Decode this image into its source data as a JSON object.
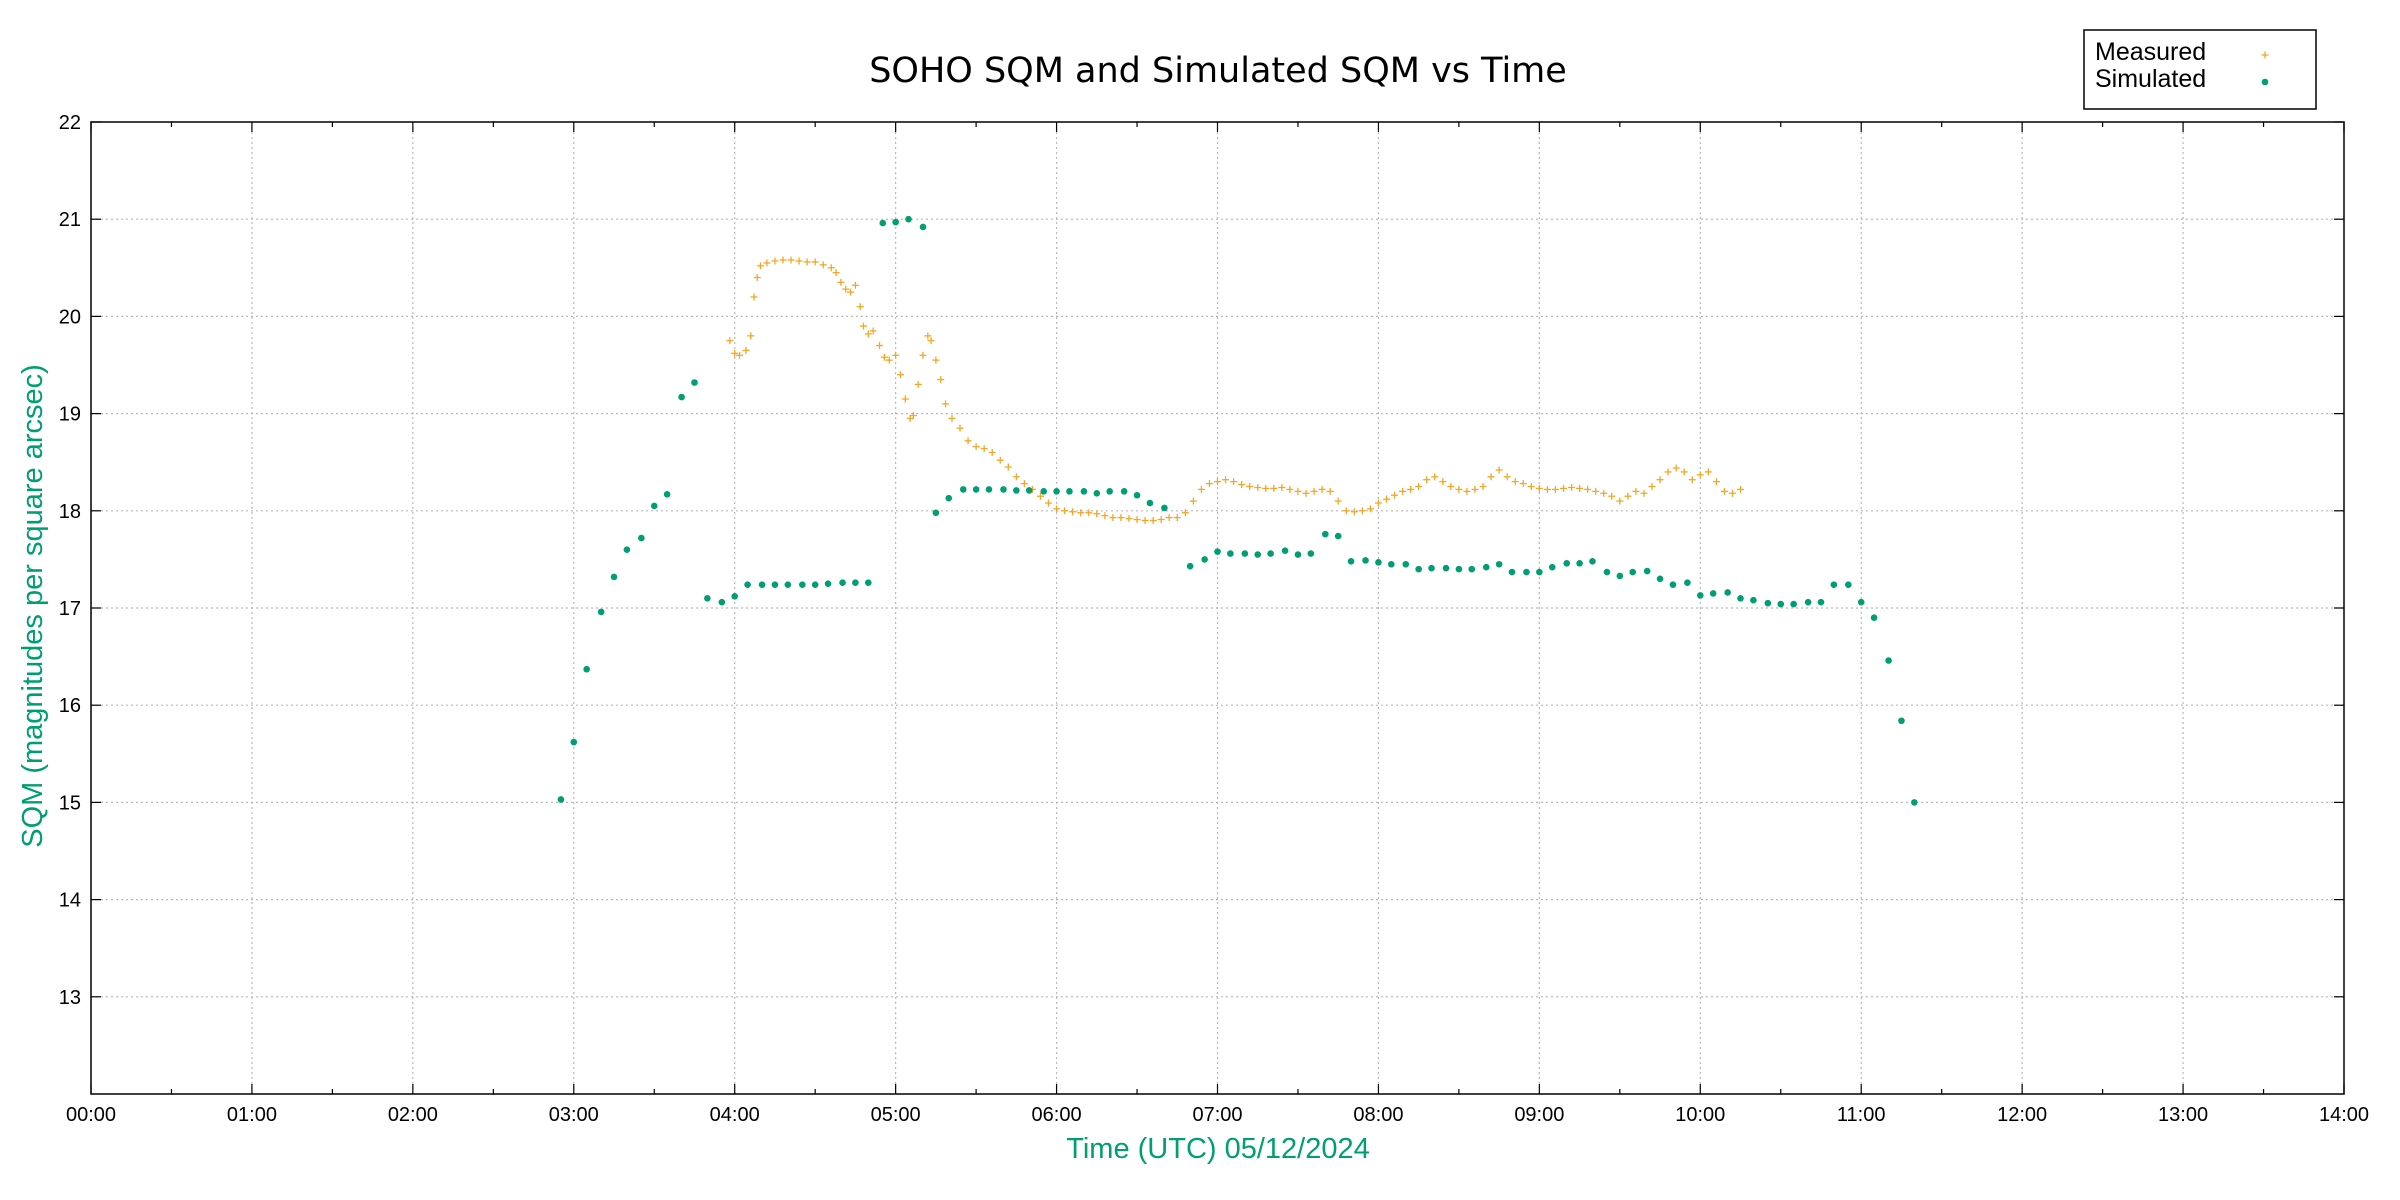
{
  "colors": {
    "measured": "#f5a623",
    "simulated": "#009e73",
    "grid": "#b8b8b8",
    "axis": "#000000",
    "label_accent": "#009e73"
  },
  "legend": {
    "measured_label": "Measured",
    "simulated_label": "Simulated",
    "placement": "top-right"
  },
  "chart_data": {
    "type": "scatter",
    "title": "SOHO SQM and Simulated SQM vs Time",
    "xlabel": "Time (UTC)   05/12/2024",
    "ylabel": "SQM (magnitudes per square arcsec)",
    "xlim": [
      0,
      14
    ],
    "ylim": [
      12,
      22
    ],
    "x_unit": "hours UTC",
    "grid": true,
    "x_ticks": [
      "00:00",
      "01:00",
      "02:00",
      "03:00",
      "04:00",
      "05:00",
      "06:00",
      "07:00",
      "08:00",
      "09:00",
      "10:00",
      "11:00",
      "12:00",
      "13:00",
      "14:00"
    ],
    "y_ticks": [
      "13",
      "14",
      "15",
      "16",
      "17",
      "18",
      "19",
      "20",
      "21",
      "22"
    ],
    "series": [
      {
        "name": "Measured",
        "marker": "plus",
        "points": [
          [
            3.97,
            19.75
          ],
          [
            4.0,
            19.62
          ],
          [
            4.03,
            19.6
          ],
          [
            4.07,
            19.65
          ],
          [
            4.1,
            19.8
          ],
          [
            4.12,
            20.2
          ],
          [
            4.14,
            20.4
          ],
          [
            4.16,
            20.52
          ],
          [
            4.2,
            20.55
          ],
          [
            4.25,
            20.57
          ],
          [
            4.3,
            20.58
          ],
          [
            4.35,
            20.58
          ],
          [
            4.4,
            20.57
          ],
          [
            4.45,
            20.56
          ],
          [
            4.5,
            20.56
          ],
          [
            4.55,
            20.53
          ],
          [
            4.6,
            20.5
          ],
          [
            4.63,
            20.45
          ],
          [
            4.66,
            20.35
          ],
          [
            4.69,
            20.28
          ],
          [
            4.72,
            20.25
          ],
          [
            4.75,
            20.32
          ],
          [
            4.78,
            20.1
          ],
          [
            4.8,
            19.9
          ],
          [
            4.83,
            19.82
          ],
          [
            4.86,
            19.85
          ],
          [
            4.9,
            19.7
          ],
          [
            4.93,
            19.58
          ],
          [
            4.96,
            19.55
          ],
          [
            5.0,
            19.6
          ],
          [
            5.03,
            19.4
          ],
          [
            5.06,
            19.15
          ],
          [
            5.09,
            18.95
          ],
          [
            5.11,
            18.98
          ],
          [
            5.14,
            19.3
          ],
          [
            5.17,
            19.6
          ],
          [
            5.2,
            19.8
          ],
          [
            5.22,
            19.75
          ],
          [
            5.25,
            19.55
          ],
          [
            5.28,
            19.35
          ],
          [
            5.31,
            19.1
          ],
          [
            5.35,
            18.95
          ],
          [
            5.4,
            18.85
          ],
          [
            5.45,
            18.72
          ],
          [
            5.5,
            18.66
          ],
          [
            5.55,
            18.64
          ],
          [
            5.6,
            18.6
          ],
          [
            5.65,
            18.52
          ],
          [
            5.7,
            18.45
          ],
          [
            5.75,
            18.35
          ],
          [
            5.8,
            18.28
          ],
          [
            5.85,
            18.22
          ],
          [
            5.9,
            18.15
          ],
          [
            5.95,
            18.08
          ],
          [
            6.0,
            18.02
          ],
          [
            6.05,
            18.0
          ],
          [
            6.1,
            17.99
          ],
          [
            6.15,
            17.98
          ],
          [
            6.2,
            17.98
          ],
          [
            6.25,
            17.97
          ],
          [
            6.3,
            17.95
          ],
          [
            6.35,
            17.93
          ],
          [
            6.4,
            17.93
          ],
          [
            6.45,
            17.92
          ],
          [
            6.5,
            17.91
          ],
          [
            6.55,
            17.9
          ],
          [
            6.6,
            17.9
          ],
          [
            6.65,
            17.91
          ],
          [
            6.7,
            17.93
          ],
          [
            6.75,
            17.93
          ],
          [
            6.8,
            17.98
          ],
          [
            6.85,
            18.1
          ],
          [
            6.9,
            18.22
          ],
          [
            6.95,
            18.28
          ],
          [
            7.0,
            18.3
          ],
          [
            7.05,
            18.32
          ],
          [
            7.1,
            18.3
          ],
          [
            7.15,
            18.27
          ],
          [
            7.2,
            18.25
          ],
          [
            7.25,
            18.24
          ],
          [
            7.3,
            18.23
          ],
          [
            7.35,
            18.23
          ],
          [
            7.4,
            18.24
          ],
          [
            7.45,
            18.22
          ],
          [
            7.5,
            18.2
          ],
          [
            7.55,
            18.18
          ],
          [
            7.6,
            18.2
          ],
          [
            7.65,
            18.22
          ],
          [
            7.7,
            18.2
          ],
          [
            7.75,
            18.1
          ],
          [
            7.8,
            18.0
          ],
          [
            7.85,
            17.99
          ],
          [
            7.9,
            18.0
          ],
          [
            7.95,
            18.02
          ],
          [
            8.0,
            18.08
          ],
          [
            8.05,
            18.12
          ],
          [
            8.1,
            18.16
          ],
          [
            8.15,
            18.2
          ],
          [
            8.2,
            18.22
          ],
          [
            8.25,
            18.25
          ],
          [
            8.3,
            18.32
          ],
          [
            8.35,
            18.35
          ],
          [
            8.4,
            18.3
          ],
          [
            8.45,
            18.25
          ],
          [
            8.5,
            18.22
          ],
          [
            8.55,
            18.2
          ],
          [
            8.6,
            18.22
          ],
          [
            8.65,
            18.25
          ],
          [
            8.7,
            18.35
          ],
          [
            8.75,
            18.42
          ],
          [
            8.8,
            18.35
          ],
          [
            8.85,
            18.3
          ],
          [
            8.9,
            18.28
          ],
          [
            8.95,
            18.25
          ],
          [
            9.0,
            18.23
          ],
          [
            9.05,
            18.22
          ],
          [
            9.1,
            18.22
          ],
          [
            9.15,
            18.23
          ],
          [
            9.2,
            18.24
          ],
          [
            9.25,
            18.23
          ],
          [
            9.3,
            18.22
          ],
          [
            9.35,
            18.2
          ],
          [
            9.4,
            18.18
          ],
          [
            9.45,
            18.15
          ],
          [
            9.5,
            18.1
          ],
          [
            9.55,
            18.15
          ],
          [
            9.6,
            18.2
          ],
          [
            9.65,
            18.18
          ],
          [
            9.7,
            18.25
          ],
          [
            9.75,
            18.32
          ],
          [
            9.8,
            18.4
          ],
          [
            9.85,
            18.44
          ],
          [
            9.9,
            18.4
          ],
          [
            9.95,
            18.32
          ],
          [
            10.0,
            18.37
          ],
          [
            10.05,
            18.4
          ],
          [
            10.1,
            18.3
          ],
          [
            10.15,
            18.2
          ],
          [
            10.2,
            18.18
          ],
          [
            10.25,
            18.22
          ]
        ]
      },
      {
        "name": "Simulated",
        "marker": "dot",
        "points": [
          [
            2.92,
            15.03
          ],
          [
            3.0,
            15.62
          ],
          [
            3.08,
            16.37
          ],
          [
            3.17,
            16.96
          ],
          [
            3.25,
            17.32
          ],
          [
            3.33,
            17.6
          ],
          [
            3.42,
            17.72
          ],
          [
            3.5,
            18.05
          ],
          [
            3.58,
            18.17
          ],
          [
            3.67,
            19.17
          ],
          [
            3.75,
            19.32
          ],
          [
            3.83,
            17.1
          ],
          [
            3.92,
            17.06
          ],
          [
            4.0,
            17.12
          ],
          [
            4.08,
            17.24
          ],
          [
            4.17,
            17.24
          ],
          [
            4.25,
            17.24
          ],
          [
            4.33,
            17.24
          ],
          [
            4.42,
            17.24
          ],
          [
            4.5,
            17.24
          ],
          [
            4.58,
            17.25
          ],
          [
            4.67,
            17.26
          ],
          [
            4.75,
            17.26
          ],
          [
            4.83,
            17.26
          ],
          [
            4.92,
            20.96
          ],
          [
            5.0,
            20.97
          ],
          [
            5.08,
            21.0
          ],
          [
            5.17,
            20.92
          ],
          [
            5.25,
            17.98
          ],
          [
            5.33,
            18.13
          ],
          [
            5.42,
            18.22
          ],
          [
            5.5,
            18.22
          ],
          [
            5.58,
            18.22
          ],
          [
            5.67,
            18.22
          ],
          [
            5.75,
            18.21
          ],
          [
            5.83,
            18.21
          ],
          [
            5.92,
            18.2
          ],
          [
            6.0,
            18.2
          ],
          [
            6.08,
            18.2
          ],
          [
            6.17,
            18.2
          ],
          [
            6.25,
            18.18
          ],
          [
            6.33,
            18.2
          ],
          [
            6.42,
            18.2
          ],
          [
            6.5,
            18.16
          ],
          [
            6.58,
            18.08
          ],
          [
            6.67,
            18.03
          ],
          [
            6.83,
            17.43
          ],
          [
            6.92,
            17.5
          ],
          [
            7.0,
            17.58
          ],
          [
            7.08,
            17.56
          ],
          [
            7.17,
            17.56
          ],
          [
            7.25,
            17.55
          ],
          [
            7.33,
            17.56
          ],
          [
            7.42,
            17.59
          ],
          [
            7.5,
            17.55
          ],
          [
            7.58,
            17.56
          ],
          [
            7.67,
            17.76
          ],
          [
            7.75,
            17.74
          ],
          [
            7.83,
            17.48
          ],
          [
            7.92,
            17.49
          ],
          [
            8.0,
            17.47
          ],
          [
            8.08,
            17.45
          ],
          [
            8.17,
            17.45
          ],
          [
            8.25,
            17.4
          ],
          [
            8.33,
            17.41
          ],
          [
            8.42,
            17.41
          ],
          [
            8.5,
            17.4
          ],
          [
            8.58,
            17.4
          ],
          [
            8.67,
            17.42
          ],
          [
            8.75,
            17.45
          ],
          [
            8.83,
            17.37
          ],
          [
            8.92,
            17.37
          ],
          [
            9.0,
            17.37
          ],
          [
            9.08,
            17.42
          ],
          [
            9.17,
            17.46
          ],
          [
            9.25,
            17.46
          ],
          [
            9.33,
            17.48
          ],
          [
            9.42,
            17.37
          ],
          [
            9.5,
            17.33
          ],
          [
            9.58,
            17.37
          ],
          [
            9.67,
            17.38
          ],
          [
            9.75,
            17.3
          ],
          [
            9.83,
            17.24
          ],
          [
            9.92,
            17.26
          ],
          [
            10.0,
            17.13
          ],
          [
            10.08,
            17.15
          ],
          [
            10.17,
            17.16
          ],
          [
            10.25,
            17.1
          ],
          [
            10.33,
            17.08
          ],
          [
            10.42,
            17.05
          ],
          [
            10.5,
            17.04
          ],
          [
            10.58,
            17.04
          ],
          [
            10.67,
            17.06
          ],
          [
            10.75,
            17.06
          ],
          [
            10.83,
            17.24
          ],
          [
            10.92,
            17.24
          ],
          [
            11.0,
            17.06
          ],
          [
            11.08,
            16.9
          ],
          [
            11.17,
            16.46
          ],
          [
            11.25,
            15.84
          ],
          [
            11.33,
            15.0
          ]
        ]
      }
    ]
  }
}
